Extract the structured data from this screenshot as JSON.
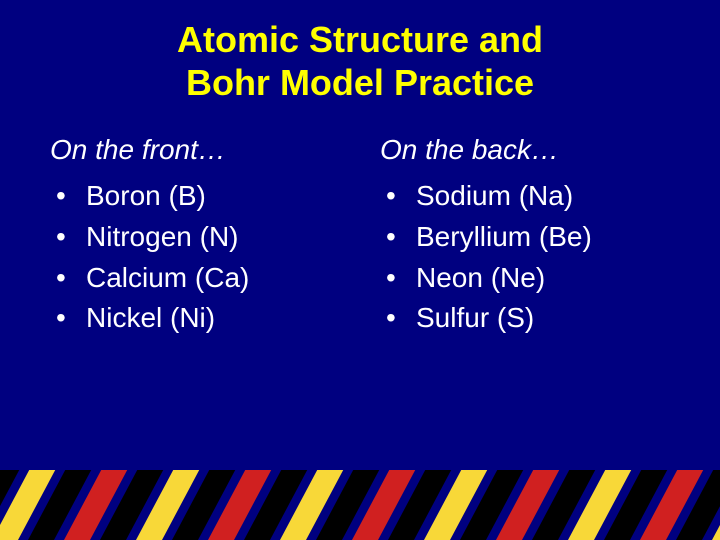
{
  "title_line1": "Atomic Structure and",
  "title_line2": "Bohr Model Practice",
  "colors": {
    "background": "#000080",
    "title": "#ffff00",
    "body_text": "#ffffff",
    "stripe_red": "#d02020",
    "stripe_yellow": "#f8d838",
    "stripe_black": "#000000"
  },
  "typography": {
    "title_fontsize": 36,
    "title_fontweight": "bold",
    "heading_fontsize": 28,
    "heading_style": "italic",
    "item_fontsize": 28
  },
  "columns": [
    {
      "heading": "On the front…",
      "items": [
        "Boron (B)",
        "Nitrogen (N)",
        "Calcium (Ca)",
        "Nickel (Ni)"
      ]
    },
    {
      "heading": "On the back…",
      "items": [
        "Sodium (Na)",
        "Beryllium (Be)",
        "Neon (Ne)",
        "Sulfur (S)"
      ]
    }
  ],
  "stripes": {
    "height": 70,
    "stripe_width": 26,
    "gap": 10,
    "skew_deg": -28,
    "pattern": [
      "red",
      "black",
      "yellow",
      "black"
    ]
  }
}
